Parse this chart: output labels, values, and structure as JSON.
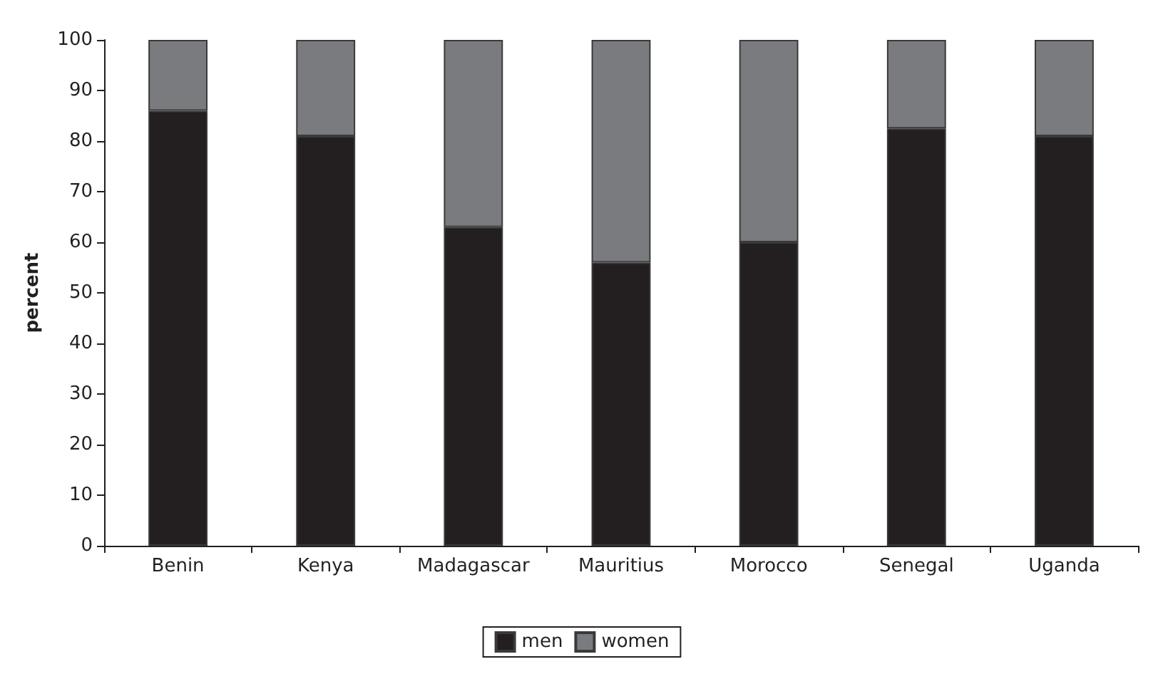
{
  "chart_data": {
    "type": "bar",
    "stacked": true,
    "ylabel": "percent",
    "categories": [
      "Benin",
      "Kenya",
      "Madagascar",
      "Mauritius",
      "Morocco",
      "Senegal",
      "Uganda"
    ],
    "series": [
      {
        "name": "men",
        "color": "#231f20",
        "values": [
          86,
          81,
          63,
          56,
          60,
          82.5,
          81
        ]
      },
      {
        "name": "women",
        "color": "#7a7b7e",
        "values": [
          14,
          19,
          37,
          44,
          40,
          17.5,
          19
        ]
      }
    ],
    "ylim": [
      0,
      100
    ],
    "yticks": [
      0,
      10,
      20,
      30,
      40,
      50,
      60,
      70,
      80,
      90,
      100
    ],
    "grid": false,
    "legend": "bottom"
  }
}
